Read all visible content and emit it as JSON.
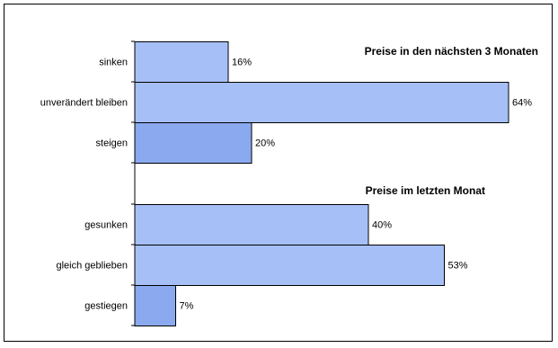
{
  "chart_data": {
    "type": "bar",
    "orientation": "horizontal",
    "unit": "%",
    "xlim": [
      0,
      70
    ],
    "grid": false,
    "legend": "none",
    "colors": {
      "default_bar": "#a6bff7",
      "highlight_bar": "#8aa9ef",
      "bar_stroke": "#000000"
    },
    "groups": [
      {
        "title": "Preise in den nächsten 3 Monaten",
        "categories": [
          "sinken",
          "unverändert bleiben",
          "steigen"
        ],
        "values": [
          16,
          64,
          20
        ],
        "highlight": [
          false,
          false,
          true
        ]
      },
      {
        "title": "Preise im letzten Monat",
        "categories": [
          "gesunken",
          "gleich geblieben",
          "gestiegen"
        ],
        "values": [
          40,
          53,
          7
        ],
        "highlight": [
          false,
          false,
          true
        ]
      }
    ]
  }
}
